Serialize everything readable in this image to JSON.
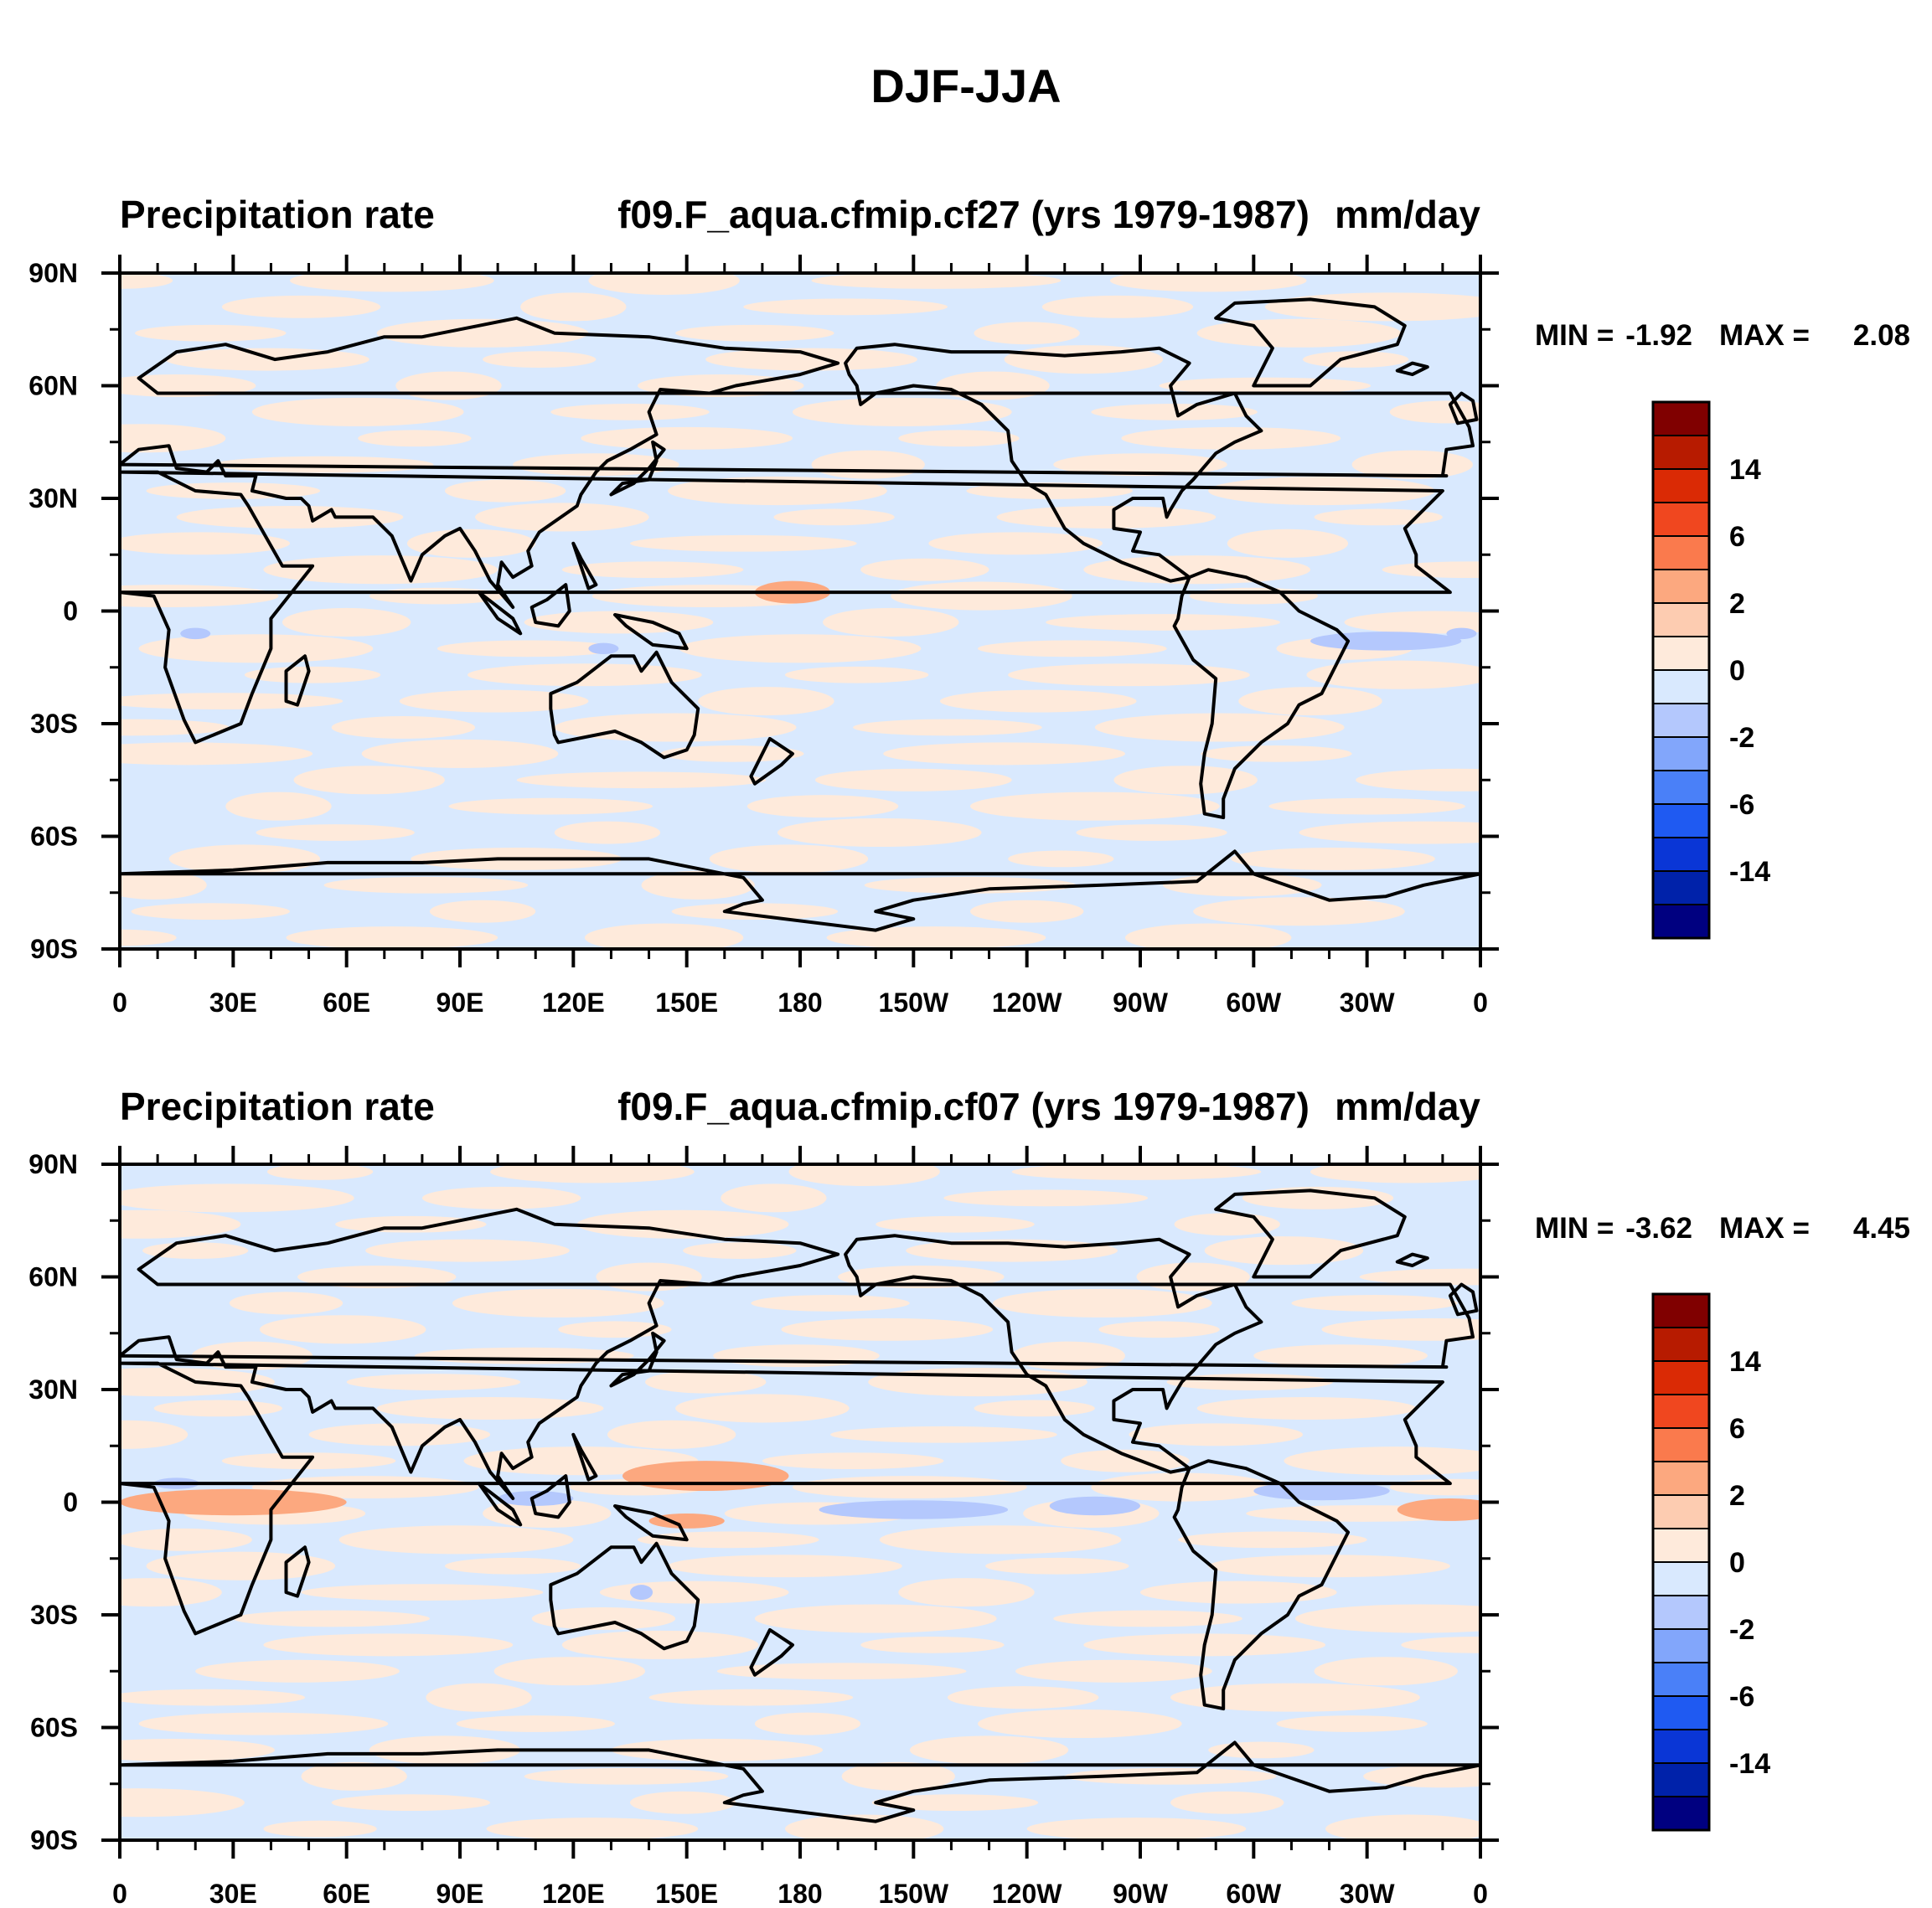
{
  "figure_title": "DJF-JJA",
  "chart_data": [
    {
      "type": "heatmap",
      "title_left": "Precipitation rate",
      "title_center": "f09.F_aqua.cfmip.cf27 (yrs 1979-1987)",
      "units": "mm/day",
      "stats": {
        "min_label": "MIN =",
        "min": "-1.92",
        "max_label": "MAX =",
        "max": "2.08"
      },
      "lat_range": [
        -90,
        90
      ],
      "lon_range": [
        0,
        360
      ],
      "lat_ticks": [
        "90N",
        "60N",
        "30N",
        "0",
        "30S",
        "60S",
        "90S"
      ],
      "lon_ticks": [
        "0",
        "30E",
        "60E",
        "90E",
        "120E",
        "150E",
        "180",
        "150W",
        "120W",
        "90W",
        "60W",
        "30W",
        "0"
      ],
      "colorbar_labels": [
        "14",
        "6",
        "2",
        "0",
        "-2",
        "-6",
        "-14"
      ],
      "features": [
        {
          "kind": "pos",
          "level": 1,
          "lon": 178,
          "lat": 5,
          "rlon": 10,
          "rlat": 3
        },
        {
          "kind": "neg",
          "level": 1,
          "lon": 335,
          "lat": -8,
          "rlon": 20,
          "rlat": 2.5
        },
        {
          "kind": "neg",
          "level": 1,
          "lon": 20,
          "lat": -6,
          "rlon": 4,
          "rlat": 1.5
        },
        {
          "kind": "neg",
          "level": 1,
          "lon": 128,
          "lat": -10,
          "rlon": 4,
          "rlat": 1.5
        },
        {
          "kind": "neg",
          "level": 1,
          "lon": 355,
          "lat": -6,
          "rlon": 4,
          "rlat": 1.5
        }
      ]
    },
    {
      "type": "heatmap",
      "title_left": "Precipitation rate",
      "title_center": "f09.F_aqua.cfmip.cf07 (yrs 1979-1987)",
      "units": "mm/day",
      "stats": {
        "min_label": "MIN =",
        "min": "-3.62",
        "max_label": "MAX =",
        "max": "4.45"
      },
      "lat_range": [
        -90,
        90
      ],
      "lon_range": [
        0,
        360
      ],
      "lat_ticks": [
        "90N",
        "60N",
        "30N",
        "0",
        "30S",
        "60S",
        "90S"
      ],
      "lon_ticks": [
        "0",
        "30E",
        "60E",
        "90E",
        "120E",
        "150E",
        "180",
        "150W",
        "120W",
        "90W",
        "60W",
        "30W",
        "0"
      ],
      "colorbar_labels": [
        "14",
        "6",
        "2",
        "0",
        "-2",
        "-6",
        "-14"
      ],
      "features": [
        {
          "kind": "pos",
          "level": 1,
          "lon": 30,
          "lat": 0,
          "rlon": 30,
          "rlat": 3.5
        },
        {
          "kind": "pos",
          "level": 1,
          "lon": 155,
          "lat": 7,
          "rlon": 22,
          "rlat": 4
        },
        {
          "kind": "pos",
          "level": 1,
          "lon": 150,
          "lat": -5,
          "rlon": 10,
          "rlat": 2
        },
        {
          "kind": "pos",
          "level": 1,
          "lon": 352,
          "lat": -2,
          "rlon": 14,
          "rlat": 3
        },
        {
          "kind": "neg",
          "level": 1,
          "lon": 210,
          "lat": -2,
          "rlon": 25,
          "rlat": 2.5
        },
        {
          "kind": "neg",
          "level": 1,
          "lon": 258,
          "lat": -1,
          "rlon": 12,
          "rlat": 2.5
        },
        {
          "kind": "neg",
          "level": 1,
          "lon": 318,
          "lat": 3,
          "rlon": 18,
          "rlat": 2.5
        },
        {
          "kind": "neg",
          "level": 1,
          "lon": 110,
          "lat": 1,
          "rlon": 10,
          "rlat": 2
        },
        {
          "kind": "neg",
          "level": 1,
          "lon": 15,
          "lat": 5,
          "rlon": 6,
          "rlat": 1.5
        },
        {
          "kind": "neg",
          "level": 1,
          "lon": 138,
          "lat": -24,
          "rlon": 3,
          "rlat": 2
        }
      ]
    }
  ],
  "colorbar_colors": [
    "#000080",
    "#0022aa",
    "#0a36d6",
    "#1f5af2",
    "#4a80f8",
    "#82a6fb",
    "#b4c8fd",
    "#d9e9fe",
    "#feeadb",
    "#fdccb1",
    "#fca87f",
    "#fa7a4d",
    "#f0471f",
    "#da2a05",
    "#b71b00",
    "#800000"
  ]
}
